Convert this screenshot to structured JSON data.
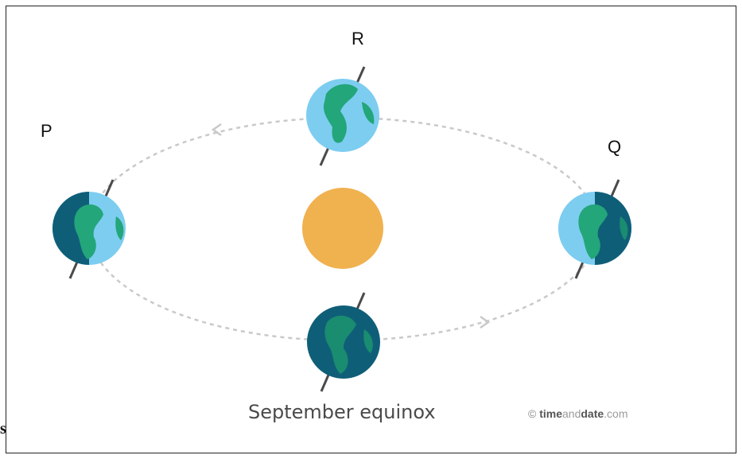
{
  "labels": {
    "p": "P",
    "q": "Q",
    "r": "R"
  },
  "caption": "September equinox",
  "credit": {
    "symbol": "©",
    "part1": "time",
    "part2": "and",
    "part3": "date",
    "part4": ".com"
  },
  "edge_text": {
    "left_letter": "s"
  },
  "colors": {
    "sun": "#f0b14f",
    "ocean_lit": "#7dcdf0",
    "ocean_dark": "#0f5e78",
    "land_lit": "#23a67a",
    "land_dark": "#1a8c70",
    "orbit": "#c9c9c9",
    "axis": "#4a4a4a"
  }
}
